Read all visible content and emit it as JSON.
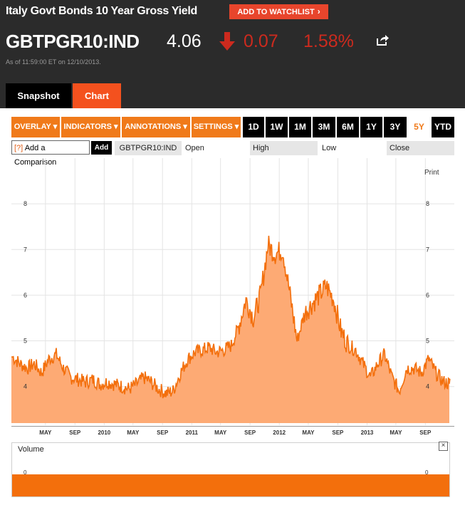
{
  "header": {
    "title": "Italy Govt Bonds 10 Year Gross Yield",
    "watchlist_button": "ADD TO WATCHLIST",
    "ticker": "GBTPGR10:IND",
    "price": "4.06",
    "change": "0.07",
    "change_pct": "1.58%",
    "as_of": "As of 11:59:00 ET on 12/10/2013."
  },
  "tabs": [
    {
      "label": "Snapshot"
    },
    {
      "label": "Chart"
    }
  ],
  "toolbar": {
    "menus": [
      "OVERLAY ▾",
      "INDICATORS ▾",
      "ANNOTATIONS ▾",
      "SETTINGS ▾"
    ],
    "ranges": [
      "1D",
      "1W",
      "1M",
      "3M",
      "6M",
      "1Y",
      "3Y",
      "5Y",
      "YTD"
    ],
    "active_range": "5Y"
  },
  "compare": {
    "link_prefix": "[?]",
    "link_label": "Add a Comparison",
    "add_button": "Add",
    "symbol": "GBTPGR10:IND",
    "fields": [
      "Open",
      "High",
      "Low",
      "Close"
    ]
  },
  "print_label": "Print",
  "volume_label": "Volume",
  "volume_close_label": "×",
  "colors": {
    "accent": "#f07a1a",
    "down": "#cc2a1e",
    "area_fill": "#fdaa74",
    "line": "#f36f0c"
  },
  "chart_data": {
    "type": "area",
    "ylim": [
      3.2,
      9.0
    ],
    "y_ticks": [
      4,
      5,
      6,
      7,
      8
    ],
    "x_ticks": [
      "MAY",
      "SEP",
      "2010",
      "MAY",
      "SEP",
      "2011",
      "MAY",
      "SEP",
      "2012",
      "MAY",
      "SEP",
      "2013",
      "MAY",
      "SEP"
    ],
    "x_range": [
      "2008-12-10",
      "2013-12-10"
    ],
    "series": [
      {
        "x": [
          "2008-12",
          "2009-01",
          "2009-02",
          "2009-03",
          "2009-04",
          "2009-05",
          "2009-06",
          "2009-07",
          "2009-08",
          "2009-09",
          "2009-10",
          "2009-11",
          "2009-12",
          "2010-01",
          "2010-02",
          "2010-03",
          "2010-04",
          "2010-05",
          "2010-06",
          "2010-07",
          "2010-08",
          "2010-09",
          "2010-10",
          "2010-11",
          "2010-12",
          "2011-01",
          "2011-02",
          "2011-03",
          "2011-04",
          "2011-05",
          "2011-06",
          "2011-07",
          "2011-08",
          "2011-09",
          "2011-10",
          "2011-11",
          "2011-12",
          "2012-01",
          "2012-02",
          "2012-03",
          "2012-04",
          "2012-05",
          "2012-06",
          "2012-07",
          "2012-08",
          "2012-09",
          "2012-10",
          "2012-11",
          "2012-12",
          "2013-01",
          "2013-02",
          "2013-03",
          "2013-04",
          "2013-05",
          "2013-06",
          "2013-07",
          "2013-08",
          "2013-09",
          "2013-10",
          "2013-11",
          "2013-12"
        ],
        "values": [
          4.65,
          4.5,
          4.4,
          4.5,
          4.3,
          4.6,
          4.7,
          4.4,
          4.2,
          4.15,
          4.1,
          4.15,
          4.05,
          4.1,
          4.05,
          4.0,
          3.95,
          4.05,
          4.2,
          4.1,
          3.95,
          3.85,
          3.9,
          4.3,
          4.6,
          4.75,
          4.8,
          4.85,
          4.75,
          4.8,
          4.9,
          5.3,
          5.9,
          5.5,
          6.0,
          7.1,
          6.9,
          7.0,
          6.0,
          5.0,
          5.6,
          5.8,
          6.0,
          6.2,
          5.9,
          5.2,
          4.9,
          4.8,
          4.5,
          4.2,
          4.5,
          4.7,
          4.2,
          3.9,
          4.4,
          4.4,
          4.3,
          4.6,
          4.3,
          4.1,
          4.06
        ]
      }
    ]
  },
  "volume_data": {
    "y_tick": "0"
  }
}
